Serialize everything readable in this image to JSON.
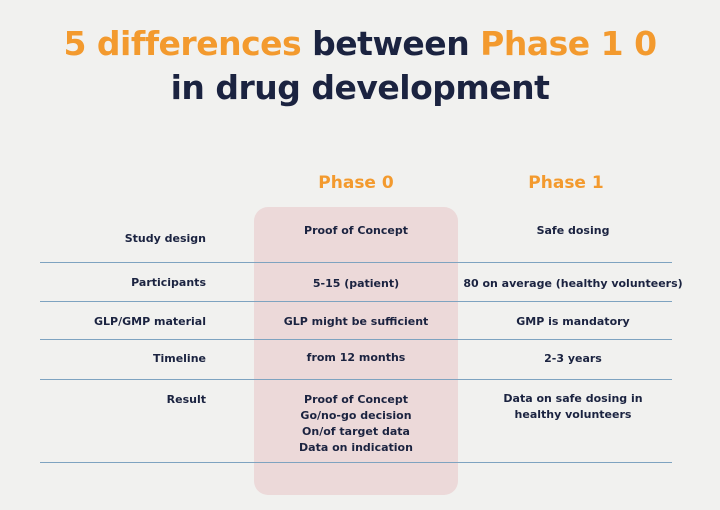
{
  "title": {
    "line1_part1": "5 differences",
    "line1_part2": " between ",
    "line1_part3": "Phase 1 0",
    "line2": "in drug development"
  },
  "columns": {
    "phase0": "Phase 0",
    "phase1": "Phase 1"
  },
  "rows": [
    {
      "label": "Study design",
      "phase0": "Proof of Concept",
      "phase1": "Safe dosing"
    },
    {
      "label": "Participants",
      "phase0": "5-15 (patient)",
      "phase1": "80 on average (healthy volunteers)"
    },
    {
      "label": "GLP/GMP material",
      "phase0": "GLP might be sufficient",
      "phase1": "GMP is mandatory"
    },
    {
      "label": "Timeline",
      "phase0": "from 12 months",
      "phase1": "2-3 years"
    },
    {
      "label": "Result",
      "phase0_lines": [
        "Proof of Concept",
        "Go/no-go decision",
        "On/of target data",
        "Data on indication"
      ],
      "phase1_lines": [
        "Data on safe dosing in",
        "healthy volunteers"
      ]
    }
  ],
  "colors": {
    "accent": "#f39a2e",
    "text": "#1b2340",
    "highlight": "#ecd9d9",
    "rule": "#7ea3c0",
    "background": "#f1f1ef"
  }
}
